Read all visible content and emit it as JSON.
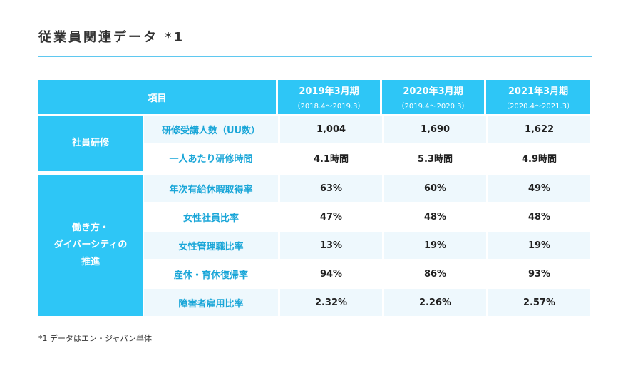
{
  "title": "従業員関連データ *1",
  "table": {
    "header": {
      "item": "項目",
      "years": [
        {
          "label": "2019年3月期",
          "range": "（2018.4～2019.3）"
        },
        {
          "label": "2020年3月期",
          "range": "（2019.4～2020.3）"
        },
        {
          "label": "2021年3月期",
          "range": "（2020.4～2021.3）"
        }
      ]
    },
    "groups": [
      {
        "category": "社員研修",
        "rows": [
          {
            "label": "研修受講人数（UU数）",
            "values": [
              "1,004",
              "1,690",
              "1,622"
            ]
          },
          {
            "label": "一人あたり研修時間",
            "values": [
              "4.1時間",
              "5.3時間",
              "4.9時間"
            ]
          }
        ]
      },
      {
        "category_lines": [
          "働き方・",
          "ダイバーシティの",
          "推進"
        ],
        "rows": [
          {
            "label": "年次有給休暇取得率",
            "values": [
              "63%",
              "60%",
              "49%"
            ]
          },
          {
            "label": "女性社員比率",
            "values": [
              "47%",
              "48%",
              "48%"
            ]
          },
          {
            "label": "女性管理職比率",
            "values": [
              "13%",
              "19%",
              "19%"
            ]
          },
          {
            "label": "産休・育休復帰率",
            "values": [
              "94%",
              "86%",
              "93%"
            ]
          },
          {
            "label": "障害者雇用比率",
            "values": [
              "2.32%",
              "2.26%",
              "2.57%"
            ]
          }
        ]
      }
    ]
  },
  "footnote": "*1 データはエン・ジャパン単体",
  "colors": {
    "accent": "#2ec6f6",
    "label_text": "#1aa6d8",
    "row_tint": "#eef8fd"
  }
}
